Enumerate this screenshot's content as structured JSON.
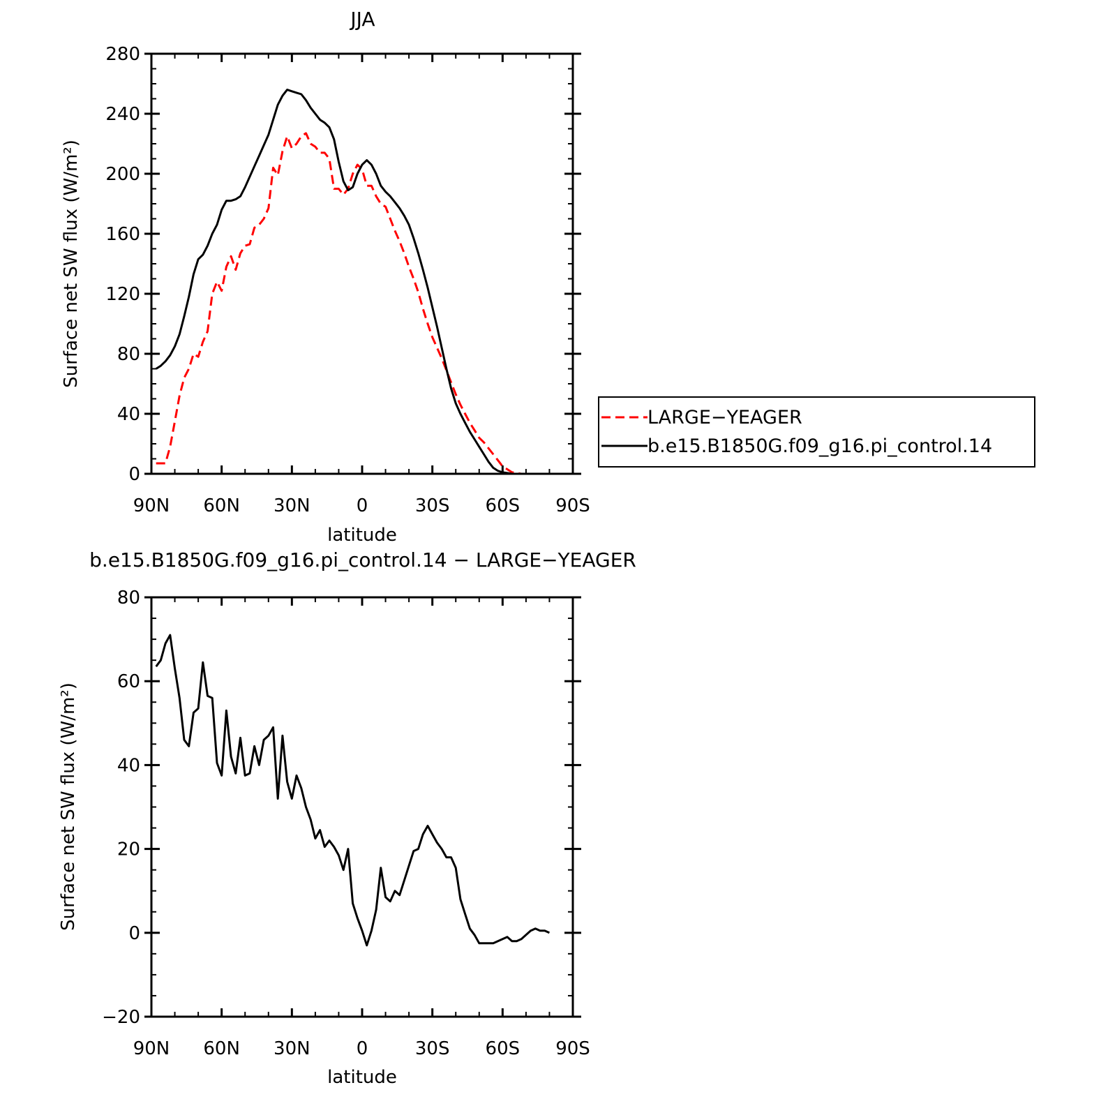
{
  "chart_data": [
    {
      "type": "line",
      "title": "JJA",
      "xlabel": "latitude",
      "ylabel": "Surface net SW flux (W/m²)",
      "xlim": [
        90,
        -90
      ],
      "ylim": [
        0,
        280
      ],
      "xticks": [
        90,
        60,
        30,
        0,
        -30,
        -60,
        -90
      ],
      "xtick_labels": [
        "90N",
        "60N",
        "30N",
        "0",
        "30S",
        "60S",
        "90S"
      ],
      "yticks": [
        0,
        40,
        80,
        120,
        160,
        200,
        240,
        280
      ],
      "ytick_labels": [
        "0",
        "40",
        "80",
        "120",
        "160",
        "200",
        "240",
        "280"
      ],
      "legend_position": "right",
      "series": [
        {
          "name": "LARGE−YEAGER",
          "color": "#ff0000",
          "dash": "dashed",
          "x": [
            88,
            86,
            84,
            82,
            80,
            78,
            76,
            74,
            72,
            70,
            68,
            66,
            64,
            62,
            60,
            58,
            56,
            54,
            52,
            50,
            48,
            46,
            44,
            42,
            40,
            38,
            36,
            34,
            32,
            30,
            28,
            26,
            24,
            22,
            20,
            18,
            16,
            14,
            12,
            10,
            8,
            6,
            4,
            2,
            0,
            -2,
            -4,
            -6,
            -8,
            -10,
            -12,
            -14,
            -16,
            -18,
            -20,
            -22,
            -24,
            -26,
            -28,
            -30,
            -32,
            -34,
            -36,
            -38,
            -40,
            -42,
            -44,
            -46,
            -48,
            -50,
            -52,
            -54,
            -56,
            -58,
            -60,
            -62,
            -64,
            -66,
            -68,
            -70,
            -72,
            -74,
            -76,
            -78,
            -80,
            -82,
            -84,
            -86,
            -88
          ],
          "y": [
            7,
            7,
            7,
            18,
            35,
            52,
            64,
            70,
            80,
            78,
            88,
            95,
            120,
            128,
            122,
            138,
            145,
            136,
            147,
            152,
            153,
            164,
            166,
            170,
            177,
            204,
            199,
            215,
            225,
            217,
            220,
            225,
            227,
            220,
            218,
            214,
            214,
            210,
            190,
            190,
            186,
            190,
            200,
            206,
            203,
            192,
            192,
            185,
            180,
            178,
            170,
            162,
            155,
            147,
            138,
            130,
            121,
            110,
            100,
            91,
            84,
            77,
            69,
            61,
            53,
            46,
            40,
            34,
            29,
            24,
            21,
            17,
            13,
            9,
            5,
            3,
            1,
            0.5,
            0,
            0,
            0,
            0,
            0,
            0,
            0,
            0,
            0,
            0,
            0
          ]
        },
        {
          "name": "b.e15.B1850G.f09_g16.pi_control.14",
          "color": "#000000",
          "dash": "solid",
          "x": [
            88,
            86,
            84,
            82,
            80,
            78,
            76,
            74,
            72,
            70,
            68,
            66,
            64,
            62,
            60,
            58,
            56,
            54,
            52,
            50,
            48,
            46,
            44,
            42,
            40,
            38,
            36,
            34,
            32,
            30,
            28,
            26,
            24,
            22,
            20,
            18,
            16,
            14,
            12,
            10,
            8,
            6,
            4,
            2,
            0,
            -2,
            -4,
            -6,
            -8,
            -10,
            -12,
            -14,
            -16,
            -18,
            -20,
            -22,
            -24,
            -26,
            -28,
            -30,
            -32,
            -34,
            -36,
            -38,
            -40,
            -42,
            -44,
            -46,
            -48,
            -50,
            -52,
            -54,
            -56,
            -58,
            -60,
            -62,
            -64,
            -66,
            -68,
            -70,
            -72,
            -74,
            -76,
            -78,
            -80,
            -82,
            -84,
            -86,
            -88
          ],
          "y": [
            70,
            72,
            75,
            79,
            85,
            93,
            105,
            118,
            133,
            143,
            146,
            152,
            160,
            166,
            176,
            182,
            182,
            183,
            185,
            191,
            198,
            205,
            212,
            219,
            226,
            236,
            246,
            252,
            256,
            255,
            254,
            253,
            249,
            244,
            240,
            236,
            234,
            231,
            223,
            208,
            195,
            189,
            191,
            200,
            206,
            209,
            206,
            200,
            192,
            188,
            185,
            181,
            177,
            172,
            166,
            157,
            147,
            136,
            124,
            111,
            98,
            84,
            70,
            57,
            47,
            40,
            34,
            28,
            23,
            18,
            13,
            8,
            4,
            2,
            1,
            0.5,
            0,
            0,
            0,
            0,
            0,
            0,
            0,
            0,
            0,
            0,
            0,
            0,
            0
          ]
        }
      ]
    },
    {
      "type": "line",
      "title": "b.e15.B1850G.f09_g16.pi_control.14 − LARGE−YEAGER",
      "xlabel": "latitude",
      "ylabel": "Surface net SW flux (W/m²)",
      "xlim": [
        90,
        -90
      ],
      "ylim": [
        -20,
        80
      ],
      "xticks": [
        90,
        60,
        30,
        0,
        -30,
        -60,
        -90
      ],
      "xtick_labels": [
        "90N",
        "60N",
        "30N",
        "0",
        "30S",
        "60S",
        "90S"
      ],
      "yticks": [
        -20,
        0,
        20,
        40,
        60,
        80
      ],
      "ytick_labels": [
        "−20",
        "0",
        "20",
        "40",
        "60",
        "80"
      ],
      "series": [
        {
          "color": "#000000",
          "dash": "solid",
          "x": [
            88,
            86,
            84,
            82,
            80,
            78,
            76,
            74,
            72,
            70,
            68,
            66,
            64,
            62,
            60,
            58,
            56,
            54,
            52,
            50,
            48,
            46,
            44,
            42,
            40,
            38,
            36,
            34,
            32,
            30,
            28,
            26,
            24,
            22,
            20,
            18,
            16,
            14,
            12,
            10,
            8,
            6,
            4,
            2,
            0,
            -2,
            -4,
            -6,
            -8,
            -10,
            -12,
            -14,
            -16,
            -18,
            -20,
            -22,
            -24,
            -26,
            -28,
            -30,
            -32,
            -34,
            -36,
            -38,
            -40,
            -42,
            -44,
            -46,
            -48,
            -50,
            -52,
            -54,
            -56,
            -58,
            -60,
            -62,
            -64,
            -66,
            -68,
            -70,
            -72,
            -74,
            -76,
            -78,
            -80
          ],
          "y": [
            63.5,
            65,
            69,
            71,
            63,
            56,
            46,
            44.5,
            52.5,
            53.5,
            64.5,
            56.5,
            56,
            40.5,
            37.5,
            53,
            42,
            38,
            46.5,
            37.5,
            38,
            44.5,
            40,
            46,
            47,
            49,
            32,
            47,
            36,
            32,
            37.5,
            34.5,
            30,
            27,
            22.5,
            24.5,
            20.5,
            22,
            20.5,
            18.5,
            15,
            20,
            7,
            3.5,
            0.5,
            -3,
            0.5,
            5.5,
            15.5,
            8.5,
            7.5,
            10,
            9,
            12.5,
            16,
            19.5,
            20,
            23.5,
            25.5,
            23.5,
            21.5,
            20,
            18,
            18,
            15.5,
            8,
            4.5,
            1,
            -0.5,
            -2.5,
            -2.5,
            -2.5,
            -2.5,
            -2,
            -1.5,
            -1,
            -2,
            -2,
            -1.5,
            -0.5,
            0.5,
            1,
            0.5,
            0.5,
            0
          ]
        }
      ]
    }
  ]
}
